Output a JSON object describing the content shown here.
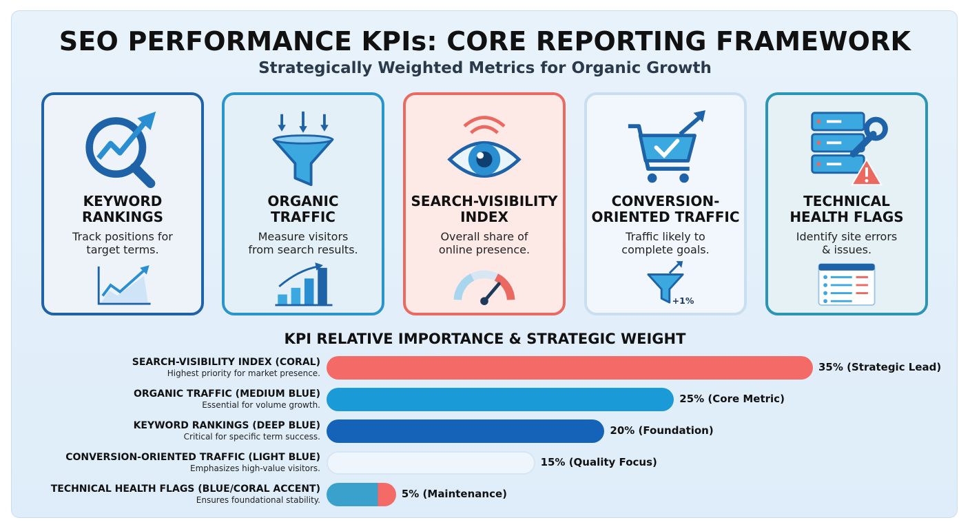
{
  "header": {
    "title": "SEO PERFORMANCE KPIs: CORE REPORTING FRAMEWORK",
    "subtitle": "Strategically Weighted Metrics for Organic Growth"
  },
  "cards": [
    {
      "title_line1": "KEYWORD",
      "title_line2": "RANKINGS",
      "desc_line1": "Track positions for",
      "desc_line2": "target terms.",
      "icon": "magnifier-trend-icon",
      "mini_icon": "line-chart-icon",
      "accent": "#1e63a8",
      "bg": "#eef3fa"
    },
    {
      "title_line1": "ORGANIC",
      "title_line2": "TRAFFIC",
      "desc_line1": "Measure visitors",
      "desc_line2": "from search results.",
      "icon": "funnel-icon",
      "mini_icon": "bar-chart-icon",
      "accent": "#2a95c8",
      "bg": "#e4f0f7"
    },
    {
      "title_line1": "SEARCH-VISIBILITY",
      "title_line2": "INDEX",
      "desc_line1": "Overall share of",
      "desc_line2": "online presence.",
      "icon": "eye-icon",
      "mini_icon": "gauge-icon",
      "accent": "#ea6a62",
      "bg": "#fde9e6"
    },
    {
      "title_line1": "CONVERSION-",
      "title_line2": "ORIENTED TRAFFIC",
      "desc_line1": "Traffic likely to",
      "desc_line2": "complete goals.",
      "icon": "cart-trend-icon",
      "mini_icon": "funnel-plus-icon",
      "mini_text": "+1%",
      "accent": "#c9def0",
      "bg": "#f1f7fc"
    },
    {
      "title_line1": "TECHNICAL",
      "title_line2": "HEALTH FLAGS",
      "desc_line1": "Identify site errors",
      "desc_line2": "& issues.",
      "icon": "server-wrench-warning-icon",
      "mini_icon": "checklist-icon",
      "accent": "#2a95b5",
      "bg": "#e6f1f6"
    }
  ],
  "chart_data": {
    "type": "bar",
    "orientation": "horizontal",
    "title": "KPI RELATIVE IMPORTANCE & STRATEGIC WEIGHT",
    "categories": [
      "SEARCH-VISIBILITY INDEX (CORAL)",
      "ORGANIC TRAFFIC (MEDIUM BLUE)",
      "KEYWORD RANKINGS (DEEP BLUE)",
      "CONVERSION-ORIENTED TRAFFIC (LIGHT BLUE)",
      "TECHNICAL HEALTH FLAGS (BLUE/CORAL ACCENT)"
    ],
    "descriptions": [
      "Highest priority for market presence.",
      "Essential for volume growth.",
      "Critical for specific term success.",
      "Emphasizes high-value visitors.",
      "Ensures foundational stability."
    ],
    "values": [
      35,
      25,
      20,
      15,
      5
    ],
    "value_labels": [
      "35% (Strategic Lead)",
      "25% (Core Metric)",
      "20% (Foundation)",
      "15% (Quality Focus)",
      "5% (Maintenance)"
    ],
    "colors": [
      "#f36a66",
      "#1a9ad6",
      "#1563b8",
      "#eef5fc",
      "#3aa0cc"
    ],
    "accent_color": "#f36a66",
    "unit": "%",
    "xlim": [
      0,
      35
    ]
  }
}
